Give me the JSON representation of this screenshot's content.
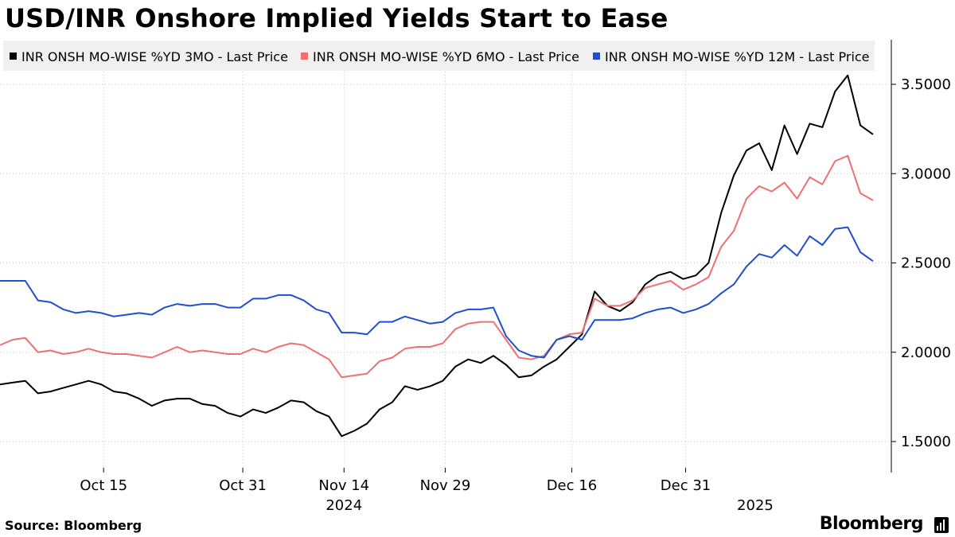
{
  "title": "USD/INR Onshore Implied Yields Start to Ease",
  "source": "Source: Bloomberg",
  "brand": "Bloomberg",
  "brand_icon": "bar-chart-icon",
  "colors": {
    "series_3mo": "#000000",
    "series_6mo": "#f07070",
    "series_12m": "#1f4fd1",
    "legend_bg": "#f0f0f0",
    "grid": "#c8c8c8"
  },
  "chart_data": {
    "type": "line",
    "title": "USD/INR Onshore Implied Yields Start to Ease",
    "xlabel": "",
    "ylabel": "",
    "ylim": [
      1.3,
      3.75
    ],
    "yticks": [
      1.5,
      2.0,
      2.5,
      3.0,
      3.5
    ],
    "ytick_labels": [
      "1.5000",
      "2.0000",
      "2.5000",
      "3.0000",
      "3.5000"
    ],
    "y_axis_side": "right",
    "legend_position": "top",
    "grid": true,
    "x_index_range": [
      0,
      62
    ],
    "x_ticks": [
      {
        "i": 8,
        "label": "Oct 15"
      },
      {
        "i": 19,
        "label": "Oct 31"
      },
      {
        "i": 27,
        "label": "Nov 14"
      },
      {
        "i": 35,
        "label": "Nov 29"
      },
      {
        "i": 45,
        "label": "Dec 16"
      },
      {
        "i": 54,
        "label": "Dec 31"
      }
    ],
    "x_year_labels": [
      {
        "i": 27,
        "label": "2024"
      },
      {
        "i": 59.5,
        "label": "2025"
      }
    ],
    "series": [
      {
        "name": "INR ONSH MO-WISE %YD 3MO - Last Price",
        "key": "series_3mo",
        "values": [
          1.82,
          1.83,
          1.84,
          1.77,
          1.78,
          1.8,
          1.82,
          1.84,
          1.82,
          1.78,
          1.77,
          1.74,
          1.7,
          1.73,
          1.74,
          1.74,
          1.71,
          1.7,
          1.66,
          1.64,
          1.68,
          1.66,
          1.69,
          1.73,
          1.72,
          1.67,
          1.64,
          1.53,
          1.56,
          1.6,
          1.68,
          1.72,
          1.81,
          1.79,
          1.81,
          1.84,
          1.92,
          1.96,
          1.94,
          1.98,
          1.93,
          1.86,
          1.87,
          1.92,
          1.96,
          2.03,
          2.1,
          2.34,
          2.26,
          2.23,
          2.28,
          2.38,
          2.43,
          2.45,
          2.41,
          2.43,
          2.5,
          2.78,
          2.99,
          3.13,
          3.17,
          3.02,
          3.27,
          3.11,
          3.28,
          3.26,
          3.46,
          3.55,
          3.27,
          3.22
        ]
      },
      {
        "name": "INR ONSH MO-WISE %YD 6MO - Last Price",
        "key": "series_6mo",
        "values": [
          2.04,
          2.07,
          2.08,
          2.0,
          2.01,
          1.99,
          2.0,
          2.02,
          2.0,
          1.99,
          1.99,
          1.98,
          1.97,
          2.0,
          2.03,
          2.0,
          2.01,
          2.0,
          1.99,
          1.99,
          2.02,
          2.0,
          2.03,
          2.05,
          2.04,
          2.0,
          1.96,
          1.86,
          1.87,
          1.88,
          1.95,
          1.97,
          2.02,
          2.03,
          2.03,
          2.05,
          2.13,
          2.16,
          2.17,
          2.17,
          2.07,
          1.97,
          1.96,
          1.98,
          2.07,
          2.1,
          2.11,
          2.3,
          2.26,
          2.26,
          2.29,
          2.36,
          2.38,
          2.4,
          2.35,
          2.38,
          2.42,
          2.59,
          2.68,
          2.86,
          2.93,
          2.9,
          2.95,
          2.86,
          2.98,
          2.94,
          3.07,
          3.1,
          2.89,
          2.85
        ]
      },
      {
        "name": "INR ONSH MO-WISE %YD 12M - Last Price",
        "key": "series_12m",
        "values": [
          2.4,
          2.4,
          2.4,
          2.29,
          2.28,
          2.24,
          2.22,
          2.23,
          2.22,
          2.2,
          2.21,
          2.22,
          2.21,
          2.25,
          2.27,
          2.26,
          2.27,
          2.27,
          2.25,
          2.25,
          2.3,
          2.3,
          2.32,
          2.32,
          2.29,
          2.24,
          2.22,
          2.11,
          2.11,
          2.1,
          2.17,
          2.17,
          2.2,
          2.18,
          2.16,
          2.17,
          2.22,
          2.24,
          2.24,
          2.25,
          2.09,
          2.01,
          1.98,
          1.97,
          2.07,
          2.09,
          2.07,
          2.18,
          2.18,
          2.18,
          2.19,
          2.22,
          2.24,
          2.25,
          2.22,
          2.24,
          2.27,
          2.33,
          2.38,
          2.48,
          2.55,
          2.53,
          2.6,
          2.54,
          2.65,
          2.6,
          2.69,
          2.7,
          2.56,
          2.51
        ]
      }
    ]
  }
}
